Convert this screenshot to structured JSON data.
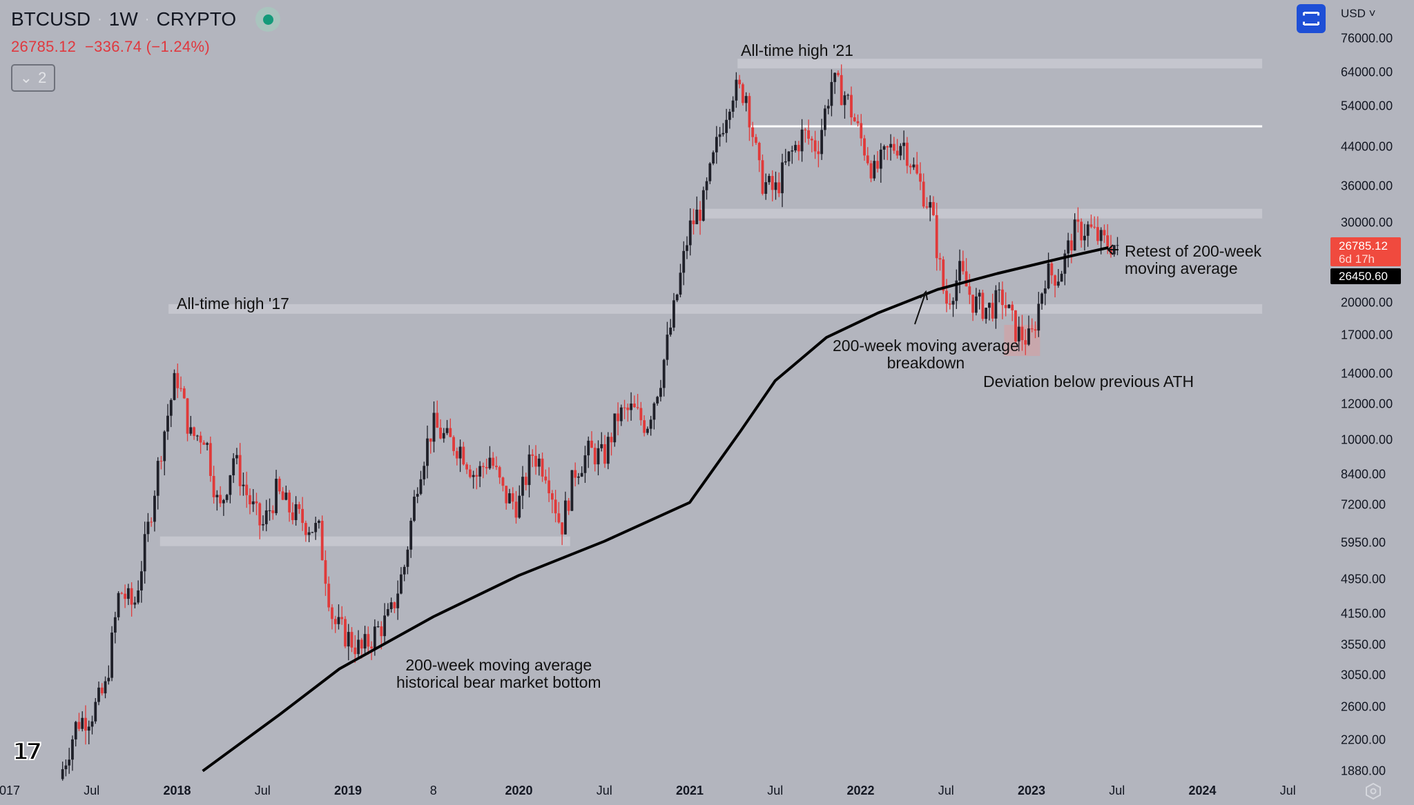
{
  "header": {
    "symbol": "BTCUSD",
    "interval": "1W",
    "exchange": "CRYPTO",
    "separator": "·"
  },
  "quote": {
    "last": "26785.12",
    "change": "−336.74",
    "change_pct": "(−1.24%)"
  },
  "indicators_toggle": {
    "icon": "chevron-down-icon",
    "count": "2"
  },
  "toolbar": {
    "fullscreen_icon": "fullscreen-icon",
    "currency": "USD"
  },
  "price_tag": {
    "price": "26785.12",
    "countdown": "6d 17h",
    "ma_value": "26450.60"
  },
  "colors": {
    "up": "#1f2029",
    "down": "#e03a3a",
    "background": "#b3b5be",
    "accent": "#1e4fd6",
    "live": "#149a7a"
  },
  "annotations": {
    "ath17": "All-time high '17",
    "ath21": "All-time high '21",
    "ma_bottom_1": "200-week moving average",
    "ma_bottom_2": "historical bear market bottom",
    "breakdown_1": "200-week moving average",
    "breakdown_2": "breakdown",
    "deviation": "Deviation below previous ATH",
    "retest_1": "Retest of 200-week",
    "retest_2": "moving average"
  },
  "chart_data": {
    "type": "candlestick",
    "scale": "log",
    "ylim": [
      1880,
      76000
    ],
    "y_ticks": [
      "76000.00",
      "64000.00",
      "54000.00",
      "44000.00",
      "36000.00",
      "30000.00",
      "20000.00",
      "17000.00",
      "14000.00",
      "12000.00",
      "10000.00",
      "8400.00",
      "7200.00",
      "5950.00",
      "4950.00",
      "4150.00",
      "3550.00",
      "3050.00",
      "2600.00",
      "2200.00",
      "1880.00"
    ],
    "x_ticks": [
      {
        "label": "2017",
        "t": 2017.0,
        "bold": false
      },
      {
        "label": "Jul",
        "t": 2017.5
      },
      {
        "label": "2018",
        "t": 2018.0,
        "bold": true
      },
      {
        "label": "Jul",
        "t": 2018.5
      },
      {
        "label": "2019",
        "t": 2019.0,
        "bold": true
      },
      {
        "label": "8",
        "t": 2019.5
      },
      {
        "label": "2020",
        "t": 2020.0,
        "bold": true
      },
      {
        "label": "Jul",
        "t": 2020.5
      },
      {
        "label": "2021",
        "t": 2021.0,
        "bold": true
      },
      {
        "label": "Jul",
        "t": 2021.5
      },
      {
        "label": "2022",
        "t": 2022.0,
        "bold": true
      },
      {
        "label": "Jul",
        "t": 2022.5
      },
      {
        "label": "2023",
        "t": 2023.0,
        "bold": true
      },
      {
        "label": "Jul",
        "t": 2023.5
      },
      {
        "label": "2024",
        "t": 2024.0,
        "bold": true
      },
      {
        "label": "Jul",
        "t": 2024.5
      }
    ],
    "monthly_closes_start": 2017.33,
    "monthly_closes": [
      1900,
      2400,
      2500,
      2850,
      4700,
      4300,
      6400,
      10000,
      14000,
      10200,
      10300,
      6900,
      9200,
      7500,
      6400,
      7700,
      7000,
      6600,
      6300,
      4000,
      3700,
      3450,
      3800,
      4100,
      5300,
      8500,
      10800,
      10000,
      9600,
      8300,
      9200,
      7550,
      7200,
      9350,
      8600,
      6400,
      8600,
      9450,
      9150,
      11300,
      11650,
      10780,
      13800,
      19700,
      29000,
      33100,
      45200,
      58800,
      57700,
      37300,
      35000,
      41500,
      47100,
      43800,
      61300,
      57000,
      46300,
      38500,
      43200,
      45500,
      37700,
      31800,
      19900,
      23300,
      20000,
      19400,
      20500,
      17200,
      16500,
      23100,
      23100,
      28500,
      29200,
      27200,
      26785
    ],
    "ma200": {
      "name": "200-week moving average",
      "points": [
        [
          2018.15,
          1880
        ],
        [
          2018.6,
          2500
        ],
        [
          2018.95,
          3150
        ],
        [
          2019.5,
          4100
        ],
        [
          2020.0,
          5050
        ],
        [
          2020.5,
          6000
        ],
        [
          2021.0,
          7300
        ],
        [
          2021.3,
          10500
        ],
        [
          2021.5,
          13500
        ],
        [
          2021.8,
          16800
        ],
        [
          2022.1,
          19000
        ],
        [
          2022.45,
          21400
        ],
        [
          2022.8,
          23200
        ],
        [
          2023.2,
          25200
        ],
        [
          2023.45,
          26450
        ]
      ]
    },
    "zones": [
      {
        "label": "ATH 2017 level",
        "price": 19400,
        "from": 2017.95,
        "to": 2024.35
      },
      {
        "label": "ATH 2021 level",
        "price": 67000,
        "from": 2021.28,
        "to": 2024.35
      },
      {
        "label": "resistance",
        "price": 31400,
        "from": 2021.06,
        "to": 2024.35
      },
      {
        "label": "support",
        "price": 6000,
        "from": 2017.9,
        "to": 2020.3
      },
      {
        "label": "white line",
        "price": 48800,
        "from": 2021.35,
        "to": 2024.35
      }
    ],
    "highlight": {
      "from": 2022.84,
      "to": 2023.05,
      "low": 15300,
      "high": 17900
    },
    "last_price": 26785.12,
    "ma_value": 26450.6
  }
}
